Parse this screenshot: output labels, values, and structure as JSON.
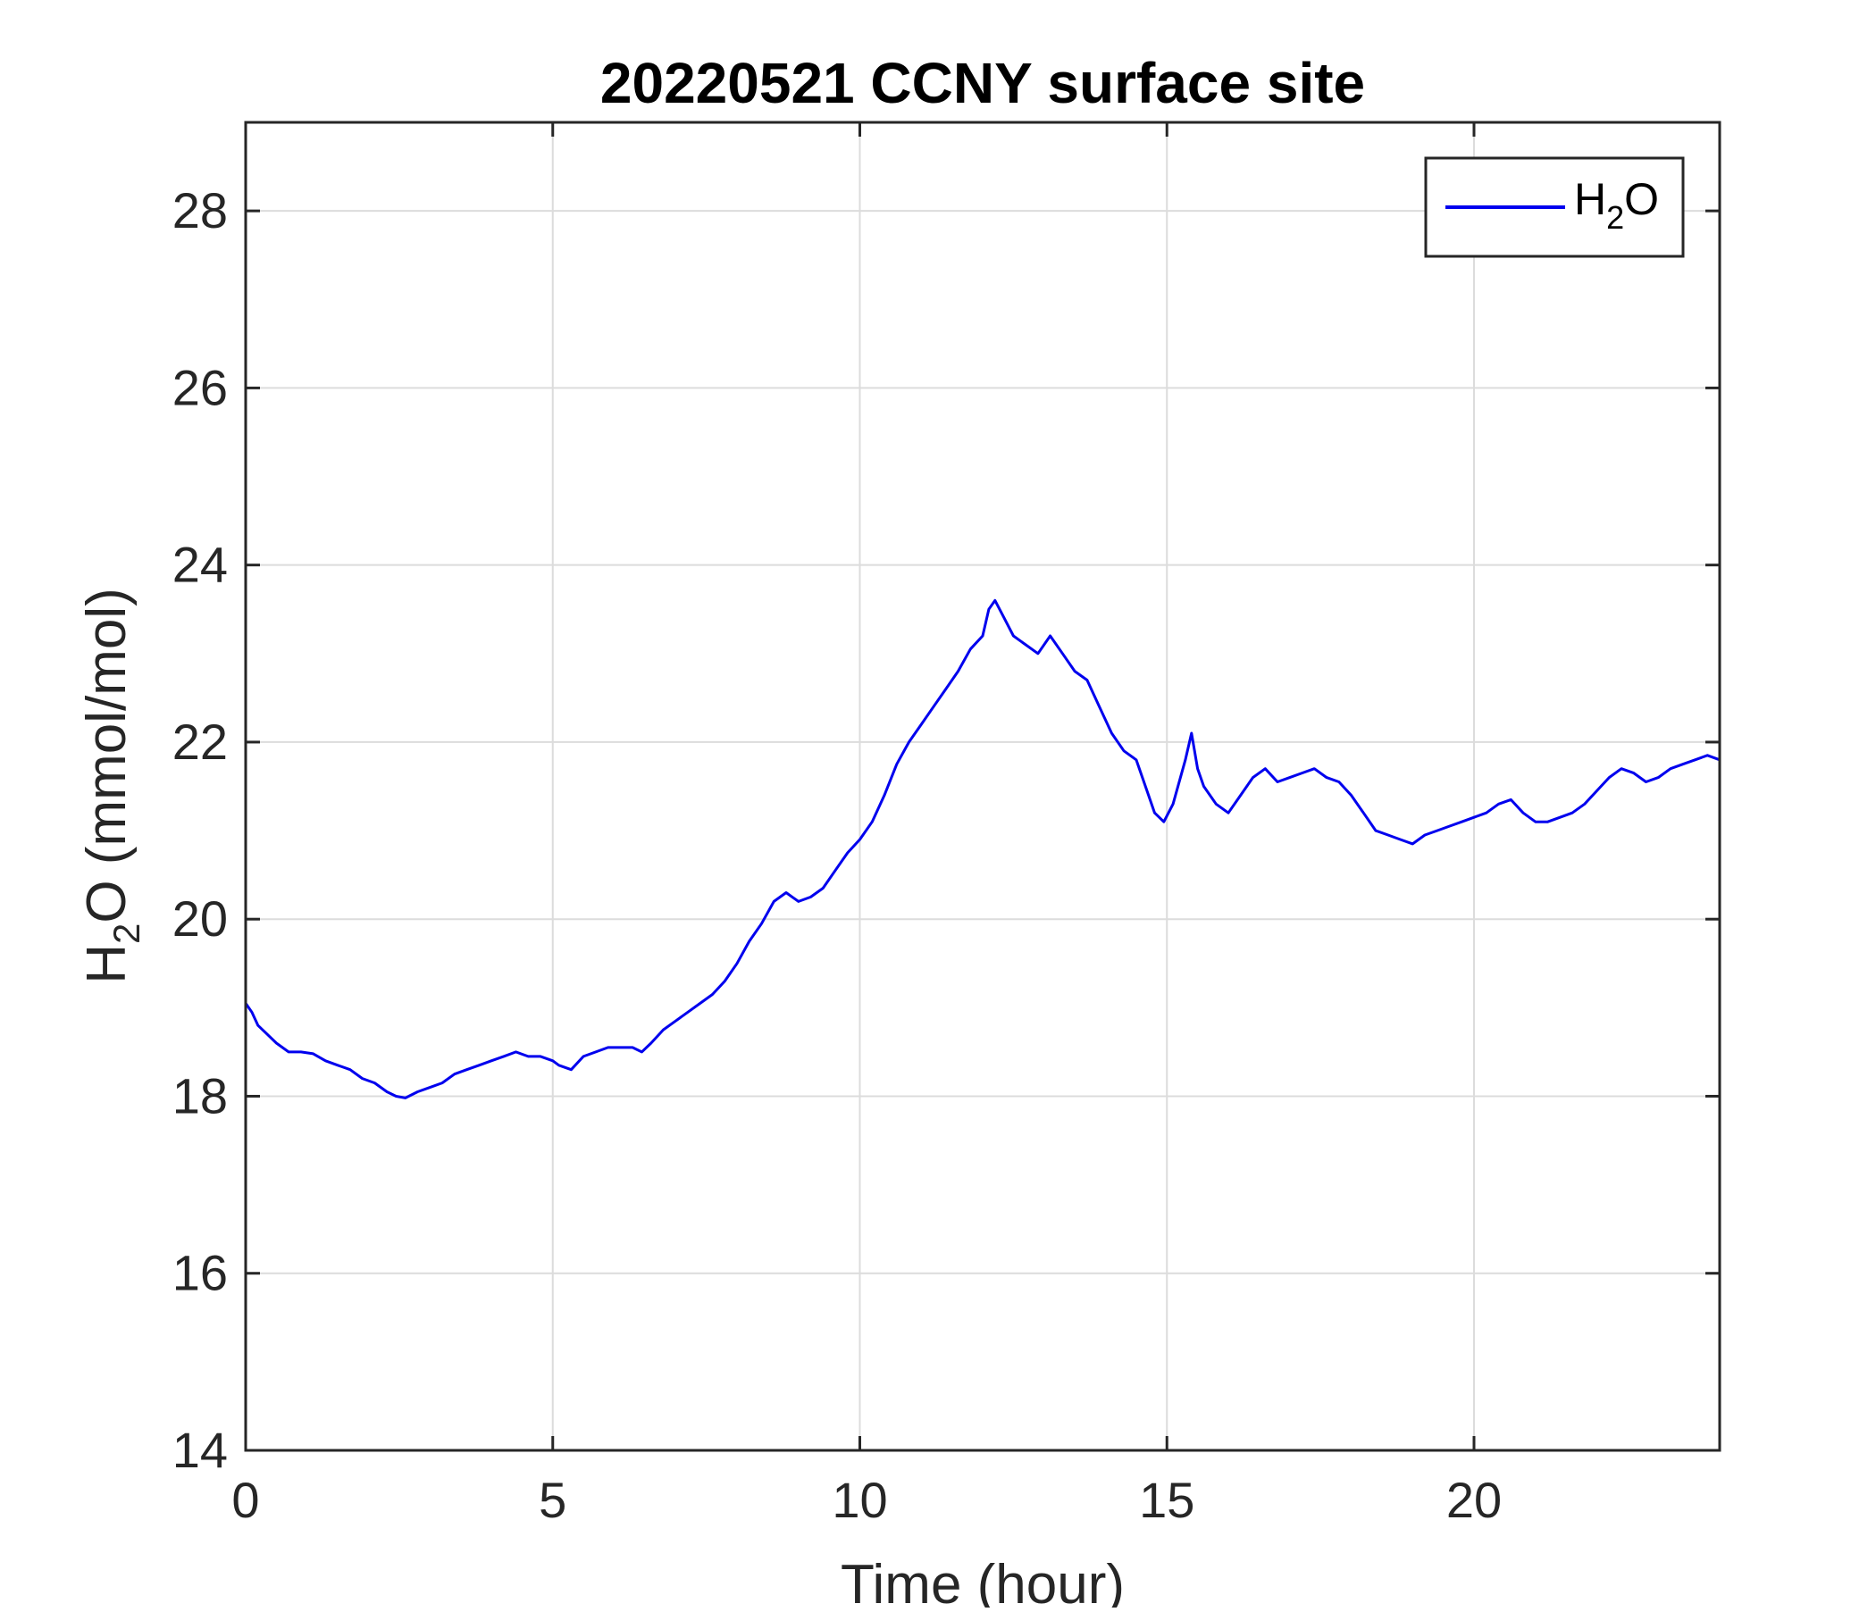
{
  "chart_data": {
    "type": "line",
    "title": "20220521 CCNY surface site",
    "xlabel": "Time (hour)",
    "ylabel": {
      "main": "H",
      "sub": "2",
      "rest": "O (mmol/mol)"
    },
    "xlim": [
      0,
      24
    ],
    "ylim": [
      14,
      29
    ],
    "xticks": [
      0,
      5,
      10,
      15,
      20
    ],
    "yticks": [
      14,
      16,
      18,
      20,
      22,
      24,
      26,
      28
    ],
    "grid": true,
    "legend_position": "top-right",
    "legend": {
      "main": "H",
      "sub": "2",
      "rest": "O"
    },
    "colors": {
      "series": "#0000ee",
      "grid": "#dcdcdc",
      "axis": "#262626"
    },
    "series": [
      {
        "x": [
          0,
          0.1,
          0.2,
          0.35,
          0.5,
          0.7,
          0.9,
          1.1,
          1.3,
          1.5,
          1.7,
          1.9,
          2.1,
          2.3,
          2.45,
          2.6,
          2.8,
          3.0,
          3.2,
          3.4,
          3.6,
          3.8,
          4.0,
          4.2,
          4.4,
          4.6,
          4.8,
          5.0,
          5.1,
          5.3,
          5.5,
          5.7,
          5.9,
          6.1,
          6.3,
          6.45,
          6.6,
          6.8,
          7.0,
          7.2,
          7.4,
          7.6,
          7.8,
          8.0,
          8.2,
          8.4,
          8.6,
          8.8,
          9.0,
          9.2,
          9.4,
          9.6,
          9.8,
          10.0,
          10.2,
          10.4,
          10.6,
          10.8,
          11.0,
          11.2,
          11.4,
          11.6,
          11.8,
          12.0,
          12.1,
          12.2,
          12.35,
          12.5,
          12.7,
          12.9,
          13.1,
          13.3,
          13.5,
          13.7,
          13.9,
          14.1,
          14.3,
          14.5,
          14.6,
          14.8,
          14.95,
          15.1,
          15.3,
          15.4,
          15.5,
          15.6,
          15.8,
          16.0,
          16.2,
          16.4,
          16.6,
          16.8,
          17.0,
          17.2,
          17.4,
          17.6,
          17.8,
          18.0,
          18.2,
          18.4,
          18.6,
          18.8,
          19.0,
          19.2,
          19.4,
          19.6,
          19.8,
          20.0,
          20.2,
          20.4,
          20.6,
          20.8,
          21.0,
          21.2,
          21.4,
          21.6,
          21.8,
          22.0,
          22.2,
          22.4,
          22.6,
          22.8,
          23.0,
          23.2,
          23.4,
          23.6,
          23.8,
          24.0
        ],
        "y": [
          19.05,
          18.95,
          18.8,
          18.7,
          18.6,
          18.5,
          18.5,
          18.48,
          18.4,
          18.35,
          18.3,
          18.2,
          18.15,
          18.05,
          18.0,
          17.98,
          18.05,
          18.1,
          18.15,
          18.25,
          18.3,
          18.35,
          18.4,
          18.45,
          18.5,
          18.45,
          18.45,
          18.4,
          18.35,
          18.3,
          18.45,
          18.5,
          18.55,
          18.55,
          18.55,
          18.5,
          18.6,
          18.75,
          18.85,
          18.95,
          19.05,
          19.15,
          19.3,
          19.5,
          19.75,
          19.95,
          20.2,
          20.3,
          20.2,
          20.25,
          20.35,
          20.55,
          20.75,
          20.9,
          21.1,
          21.4,
          21.75,
          22.0,
          22.2,
          22.4,
          22.6,
          22.8,
          23.05,
          23.2,
          23.5,
          23.6,
          23.4,
          23.2,
          23.1,
          23.0,
          23.2,
          23.0,
          22.8,
          22.7,
          22.4,
          22.1,
          21.9,
          21.8,
          21.6,
          21.2,
          21.1,
          21.3,
          21.8,
          22.1,
          21.7,
          21.5,
          21.3,
          21.2,
          21.4,
          21.6,
          21.7,
          21.55,
          21.6,
          21.65,
          21.7,
          21.6,
          21.55,
          21.4,
          21.2,
          21.0,
          20.95,
          20.9,
          20.85,
          20.95,
          21.0,
          21.05,
          21.1,
          21.15,
          21.2,
          21.3,
          21.35,
          21.2,
          21.1,
          21.1,
          21.15,
          21.2,
          21.3,
          21.45,
          21.6,
          21.7,
          21.65,
          21.55,
          21.6,
          21.7,
          21.75,
          21.8,
          21.85,
          21.8
        ]
      }
    ]
  }
}
